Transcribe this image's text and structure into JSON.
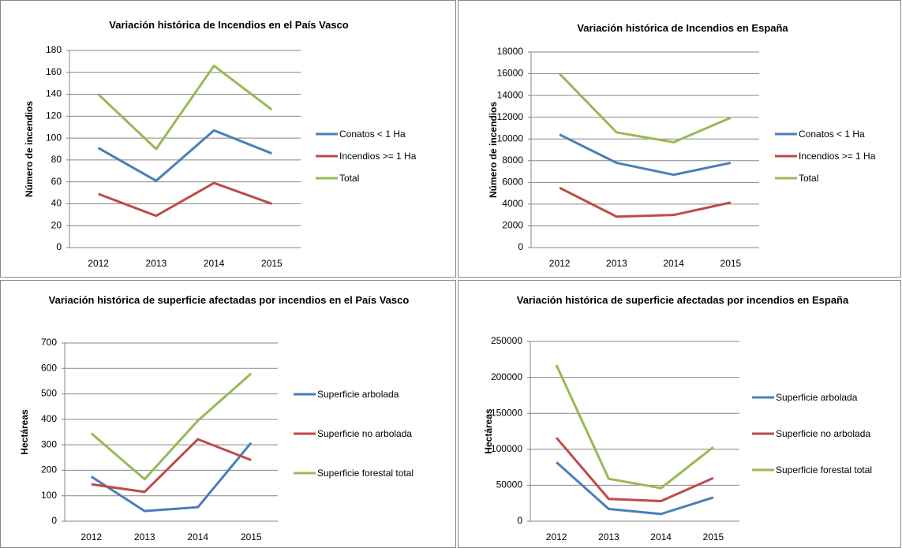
{
  "chart_data": [
    {
      "type": "line",
      "title": "Variación histórica de Incendios en el País Vasco",
      "y_label": "Número de incendios",
      "categories": [
        "2012",
        "2013",
        "2014",
        "2015"
      ],
      "series": [
        {
          "name": "Conatos < 1 Ha",
          "color": "#4a7ebb",
          "values": [
            91,
            61,
            107,
            86
          ]
        },
        {
          "name": "Incendios >= 1 Ha",
          "color": "#be4b48",
          "values": [
            49,
            29,
            59,
            40
          ]
        },
        {
          "name": "Total",
          "color": "#98b954",
          "values": [
            140,
            90,
            166,
            126
          ]
        }
      ],
      "ylim": [
        0,
        180
      ],
      "yticks": [
        0,
        20,
        40,
        60,
        80,
        100,
        120,
        140,
        160,
        180
      ],
      "grid": true,
      "legend": "right"
    },
    {
      "type": "line",
      "title": "Variación histórica de Incendios en España",
      "y_label": "Número de incendios",
      "categories": [
        "2012",
        "2013",
        "2014",
        "2015"
      ],
      "series": [
        {
          "name": "Conatos < 1 Ha",
          "color": "#4a7ebb",
          "values": [
            10400,
            7800,
            6700,
            7800
          ]
        },
        {
          "name": "Incendios >= 1 Ha",
          "color": "#be4b48",
          "values": [
            5500,
            2850,
            3000,
            4150
          ]
        },
        {
          "name": "Total",
          "color": "#98b954",
          "values": [
            16000,
            10600,
            9700,
            11950
          ]
        }
      ],
      "ylim": [
        0,
        18000
      ],
      "yticks": [
        0,
        2000,
        4000,
        6000,
        8000,
        10000,
        12000,
        14000,
        16000,
        18000
      ],
      "grid": true,
      "legend": "right"
    },
    {
      "type": "line",
      "title": "Variación histórica de superficie afectadas por incendios en el País Vasco",
      "y_label": "Hectáreas",
      "categories": [
        "2012",
        "2013",
        "2014",
        "2015"
      ],
      "series": [
        {
          "name": "Superficie arbolada",
          "color": "#4a7ebb",
          "values": [
            175,
            40,
            55,
            308
          ]
        },
        {
          "name": "Superficie no arbolada",
          "color": "#be4b48",
          "values": [
            145,
            115,
            322,
            240
          ]
        },
        {
          "name": "Superficie forestal total",
          "color": "#98b954",
          "values": [
            345,
            165,
            395,
            580
          ]
        }
      ],
      "ylim": [
        0,
        700
      ],
      "yticks": [
        0,
        100,
        200,
        300,
        400,
        500,
        600,
        700
      ],
      "grid": true,
      "legend": "right"
    },
    {
      "type": "line",
      "title": "Variación histórica de superficie afectadas por incendios en España",
      "y_label": "Hectáreas",
      "categories": [
        "2012",
        "2013",
        "2014",
        "2015"
      ],
      "series": [
        {
          "name": "Superficie arbolada",
          "color": "#4a7ebb",
          "values": [
            82000,
            17000,
            10000,
            33000
          ]
        },
        {
          "name": "Superficie no arbolada",
          "color": "#be4b48",
          "values": [
            116000,
            31000,
            28000,
            60000
          ]
        },
        {
          "name": "Superficie forestal total",
          "color": "#98b954",
          "values": [
            217000,
            59000,
            46000,
            103000
          ]
        }
      ],
      "ylim": [
        0,
        250000
      ],
      "yticks": [
        0,
        50000,
        100000,
        150000,
        200000,
        250000
      ],
      "grid": true,
      "legend": "right"
    }
  ]
}
